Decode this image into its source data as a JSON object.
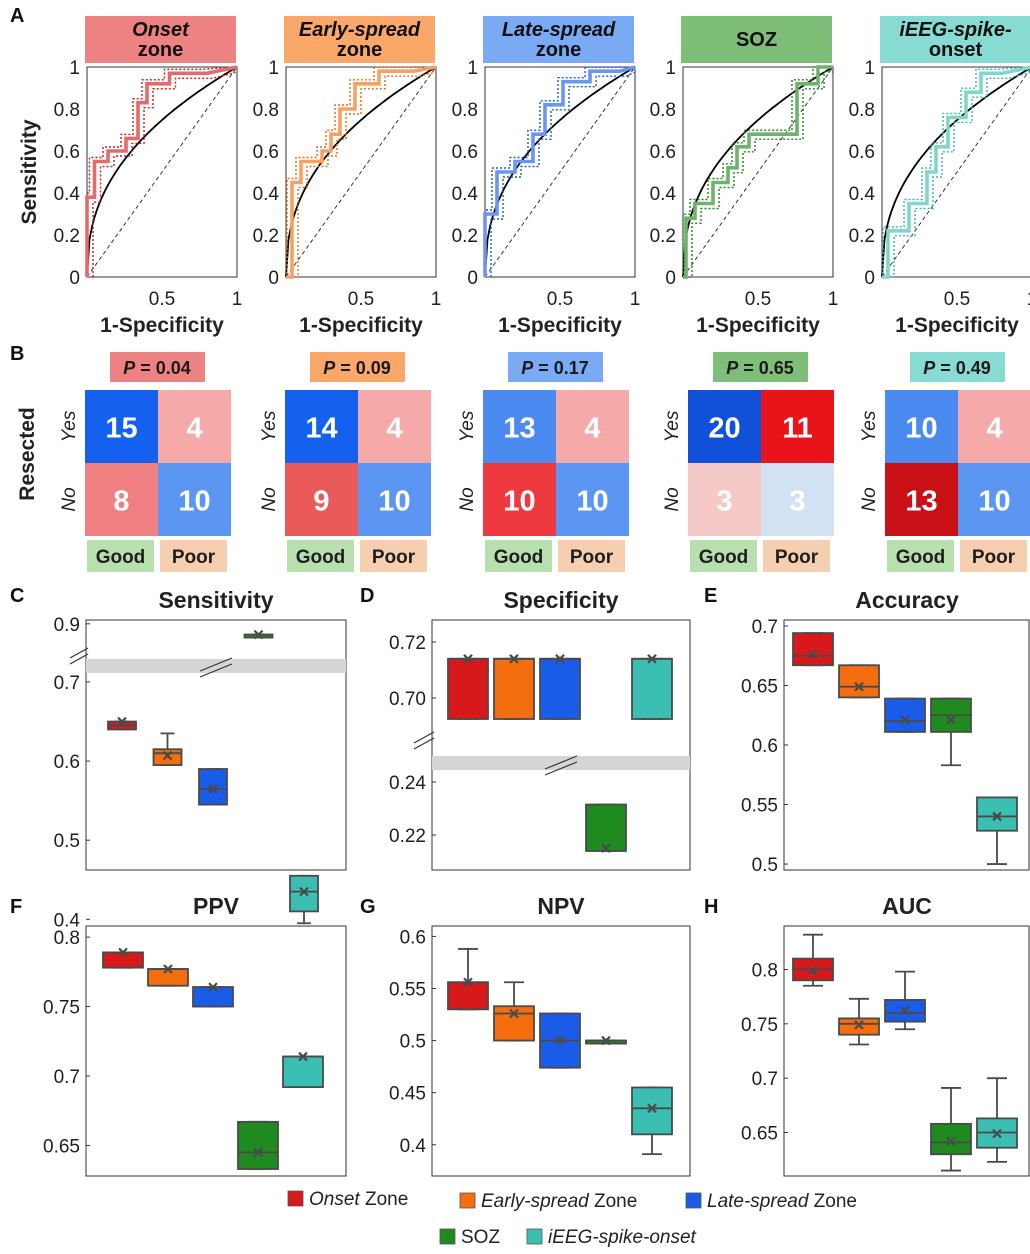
{
  "colors": {
    "onset": "#d7191c",
    "early": "#f46d0f",
    "late": "#1a5ce8",
    "soz": "#1f8a1f",
    "ieeg": "#3bbfb2",
    "onset_light": "#ec8282",
    "early_light": "#f9a86a",
    "late_light": "#79aaf3",
    "soz_light": "#7fbe78",
    "ieeg_light": "#87dbd2",
    "good_bg": "#b8dfae",
    "poor_bg": "#f6cfb0"
  },
  "panel_letters": [
    "A",
    "B",
    "C",
    "D",
    "E",
    "F",
    "G",
    "H"
  ],
  "panelA": {
    "ylabel": "Sensitivity",
    "xlabel": "1-Specificity",
    "yticks": [
      "0",
      "0.2",
      "0.4",
      "0.6",
      "0.8",
      "1"
    ],
    "xticks": [
      "0.5",
      "1"
    ],
    "headers": [
      {
        "key": "onset",
        "line1": "Onset",
        "line2": "zone",
        "italic1": true
      },
      {
        "key": "early",
        "line1": "Early-spread",
        "line2": "zone",
        "italic1": true
      },
      {
        "key": "late",
        "line1": "Late-spread",
        "line2": "zone",
        "italic1": true
      },
      {
        "key": "soz",
        "line1": "SOZ",
        "line2": "",
        "italic1": false
      },
      {
        "key": "ieeg",
        "line1": "iEEG-spike-",
        "line2": "onset",
        "italic1": true
      }
    ]
  },
  "panelB": {
    "ylabel": "Resected",
    "row_labels": [
      "Yes",
      "No"
    ],
    "col_labels": [
      "Good",
      "Poor"
    ],
    "matrices": [
      {
        "key": "onset",
        "p": "P = 0.04",
        "cells": [
          [
            15,
            4
          ],
          [
            8,
            10
          ]
        ]
      },
      {
        "key": "early",
        "p": "P = 0.09",
        "cells": [
          [
            14,
            4
          ],
          [
            9,
            10
          ]
        ]
      },
      {
        "key": "late",
        "p": "P = 0.17",
        "cells": [
          [
            13,
            4
          ],
          [
            10,
            10
          ]
        ]
      },
      {
        "key": "soz",
        "p": "P = 0.65",
        "cells": [
          [
            20,
            11
          ],
          [
            3,
            3
          ]
        ]
      },
      {
        "key": "ieeg",
        "p": "P = 0.49",
        "cells": [
          [
            10,
            4
          ],
          [
            13,
            10
          ]
        ]
      }
    ]
  },
  "chart_data": [
    {
      "panel": "C",
      "type": "box",
      "title": "Sensitivity",
      "axis_break": true,
      "yticks": [
        "0.4",
        "0.5",
        "0.6",
        "0.7",
        "0.9"
      ],
      "series": [
        {
          "name": "Onset Zone",
          "key": "onset",
          "q1": 0.64,
          "median": 0.645,
          "q3": 0.65,
          "whisker_low": 0.64,
          "whisker_high": 0.65,
          "mean": 0.65
        },
        {
          "name": "Early-spread Zone",
          "key": "early",
          "q1": 0.595,
          "median": 0.61,
          "q3": 0.615,
          "whisker_low": 0.595,
          "whisker_high": 0.635,
          "mean": 0.607
        },
        {
          "name": "Late-spread Zone",
          "key": "late",
          "q1": 0.545,
          "median": 0.565,
          "q3": 0.59,
          "whisker_low": 0.545,
          "whisker_high": 0.59,
          "mean": 0.565
        },
        {
          "name": "SOZ",
          "key": "soz",
          "q1": 0.87,
          "median": 0.87,
          "q3": 0.87,
          "whisker_low": 0.87,
          "whisker_high": 0.87,
          "mean": 0.87
        },
        {
          "name": "iEEG-spike-onset",
          "key": "ieeg",
          "q1": 0.41,
          "median": 0.435,
          "q3": 0.455,
          "whisker_low": 0.395,
          "whisker_high": 0.455,
          "mean": 0.435
        }
      ]
    },
    {
      "panel": "D",
      "type": "box",
      "title": "Specificity",
      "axis_break": true,
      "yticks": [
        "0.22",
        "0.24",
        "0.70",
        "0.72"
      ],
      "series": [
        {
          "name": "Onset Zone",
          "key": "onset",
          "q1": 0.6925,
          "median": 0.714,
          "q3": 0.714,
          "whisker_low": 0.6925,
          "whisker_high": 0.714,
          "mean": 0.714
        },
        {
          "name": "Early-spread Zone",
          "key": "early",
          "q1": 0.6925,
          "median": 0.714,
          "q3": 0.714,
          "whisker_low": 0.6925,
          "whisker_high": 0.714,
          "mean": 0.714
        },
        {
          "name": "Late-spread Zone",
          "key": "late",
          "q1": 0.6925,
          "median": 0.714,
          "q3": 0.714,
          "whisker_low": 0.6925,
          "whisker_high": 0.714,
          "mean": 0.714
        },
        {
          "name": "SOZ",
          "key": "soz",
          "q1": 0.214,
          "median": 0.214,
          "q3": 0.2315,
          "whisker_low": 0.214,
          "whisker_high": 0.2315,
          "mean": 0.215
        },
        {
          "name": "iEEG-spike-onset",
          "key": "ieeg",
          "q1": 0.6925,
          "median": 0.714,
          "q3": 0.714,
          "whisker_low": 0.6925,
          "whisker_high": 0.714,
          "mean": 0.714
        }
      ]
    },
    {
      "panel": "E",
      "type": "box",
      "title": "Accuracy",
      "axis_break": false,
      "yticks": [
        "0.5",
        "0.55",
        "0.6",
        "0.65",
        "0.7"
      ],
      "ylim": [
        0.495,
        0.705
      ],
      "series": [
        {
          "name": "Onset Zone",
          "key": "onset",
          "q1": 0.667,
          "median": 0.675,
          "q3": 0.694,
          "whisker_low": 0.667,
          "whisker_high": 0.694,
          "mean": 0.676
        },
        {
          "name": "Early-spread Zone",
          "key": "early",
          "q1": 0.64,
          "median": 0.649,
          "q3": 0.667,
          "whisker_low": 0.64,
          "whisker_high": 0.667,
          "mean": 0.649
        },
        {
          "name": "Late-spread Zone",
          "key": "late",
          "q1": 0.611,
          "median": 0.62,
          "q3": 0.639,
          "whisker_low": 0.611,
          "whisker_high": 0.639,
          "mean": 0.621
        },
        {
          "name": "SOZ",
          "key": "soz",
          "q1": 0.611,
          "median": 0.625,
          "q3": 0.639,
          "whisker_low": 0.583,
          "whisker_high": 0.639,
          "mean": 0.621
        },
        {
          "name": "iEEG-spike-onset",
          "key": "ieeg",
          "q1": 0.528,
          "median": 0.54,
          "q3": 0.556,
          "whisker_low": 0.5,
          "whisker_high": 0.556,
          "mean": 0.54
        }
      ]
    },
    {
      "panel": "F",
      "type": "box",
      "title": "PPV",
      "axis_break": false,
      "yticks": [
        "0.65",
        "0.7",
        "0.75",
        "0.8"
      ],
      "ylim": [
        0.628,
        0.808
      ],
      "series": [
        {
          "name": "Onset Zone",
          "key": "onset",
          "q1": 0.778,
          "median": 0.789,
          "q3": 0.789,
          "whisker_low": 0.778,
          "whisker_high": 0.789,
          "mean": 0.789
        },
        {
          "name": "Early-spread Zone",
          "key": "early",
          "q1": 0.765,
          "median": 0.777,
          "q3": 0.777,
          "whisker_low": 0.765,
          "whisker_high": 0.777,
          "mean": 0.777
        },
        {
          "name": "Late-spread Zone",
          "key": "late",
          "q1": 0.75,
          "median": 0.764,
          "q3": 0.764,
          "whisker_low": 0.75,
          "whisker_high": 0.764,
          "mean": 0.764
        },
        {
          "name": "SOZ",
          "key": "soz",
          "q1": 0.633,
          "median": 0.645,
          "q3": 0.667,
          "whisker_low": 0.633,
          "whisker_high": 0.667,
          "mean": 0.645
        },
        {
          "name": "iEEG-spike-onset",
          "key": "ieeg",
          "q1": 0.692,
          "median": 0.714,
          "q3": 0.714,
          "whisker_low": 0.692,
          "whisker_high": 0.714,
          "mean": 0.714
        }
      ]
    },
    {
      "panel": "G",
      "type": "box",
      "title": "NPV",
      "axis_break": false,
      "yticks": [
        "0.4",
        "0.45",
        "0.5",
        "0.55",
        "0.6"
      ],
      "ylim": [
        0.37,
        0.61
      ],
      "series": [
        {
          "name": "Onset Zone",
          "key": "onset",
          "q1": 0.53,
          "median": 0.556,
          "q3": 0.556,
          "whisker_low": 0.53,
          "whisker_high": 0.588,
          "mean": 0.556
        },
        {
          "name": "Early-spread Zone",
          "key": "early",
          "q1": 0.5,
          "median": 0.526,
          "q3": 0.533,
          "whisker_low": 0.5,
          "whisker_high": 0.556,
          "mean": 0.526
        },
        {
          "name": "Late-spread Zone",
          "key": "late",
          "q1": 0.474,
          "median": 0.5,
          "q3": 0.526,
          "whisker_low": 0.474,
          "whisker_high": 0.526,
          "mean": 0.5
        },
        {
          "name": "SOZ",
          "key": "soz",
          "q1": 0.5,
          "median": 0.5,
          "q3": 0.5,
          "whisker_low": 0.5,
          "whisker_high": 0.5,
          "mean": 0.5
        },
        {
          "name": "iEEG-spike-onset",
          "key": "ieeg",
          "q1": 0.41,
          "median": 0.435,
          "q3": 0.455,
          "whisker_low": 0.391,
          "whisker_high": 0.455,
          "mean": 0.435
        }
      ]
    },
    {
      "panel": "H",
      "type": "box",
      "title": "AUC",
      "axis_break": false,
      "yticks": [
        "0.65",
        "0.7",
        "0.75",
        "0.8"
      ],
      "ylim": [
        0.61,
        0.84
      ],
      "series": [
        {
          "name": "Onset Zone",
          "key": "onset",
          "q1": 0.79,
          "median": 0.8,
          "q3": 0.81,
          "whisker_low": 0.785,
          "whisker_high": 0.832,
          "mean": 0.799
        },
        {
          "name": "Early-spread Zone",
          "key": "early",
          "q1": 0.74,
          "median": 0.75,
          "q3": 0.755,
          "whisker_low": 0.731,
          "whisker_high": 0.773,
          "mean": 0.749
        },
        {
          "name": "Late-spread Zone",
          "key": "late",
          "q1": 0.752,
          "median": 0.76,
          "q3": 0.772,
          "whisker_low": 0.745,
          "whisker_high": 0.798,
          "mean": 0.762
        },
        {
          "name": "SOZ",
          "key": "soz",
          "q1": 0.63,
          "median": 0.641,
          "q3": 0.658,
          "whisker_low": 0.615,
          "whisker_high": 0.691,
          "mean": 0.642
        },
        {
          "name": "iEEG-spike-onset",
          "key": "ieeg",
          "q1": 0.636,
          "median": 0.65,
          "q3": 0.663,
          "whisker_low": 0.623,
          "whisker_high": 0.7,
          "mean": 0.649
        }
      ]
    }
  ],
  "roc_curves": [
    {
      "key": "onset",
      "points": [
        [
          0,
          0
        ],
        [
          0,
          0.38
        ],
        [
          0.05,
          0.38
        ],
        [
          0.05,
          0.55
        ],
        [
          0.14,
          0.55
        ],
        [
          0.14,
          0.6
        ],
        [
          0.26,
          0.6
        ],
        [
          0.26,
          0.66
        ],
        [
          0.34,
          0.66
        ],
        [
          0.34,
          0.83
        ],
        [
          0.4,
          0.83
        ],
        [
          0.4,
          0.92
        ],
        [
          0.55,
          0.92
        ],
        [
          0.55,
          0.97
        ],
        [
          0.8,
          0.97
        ],
        [
          1,
          1
        ]
      ]
    },
    {
      "key": "early",
      "points": [
        [
          0,
          0
        ],
        [
          0.04,
          0
        ],
        [
          0.04,
          0.45
        ],
        [
          0.1,
          0.45
        ],
        [
          0.1,
          0.55
        ],
        [
          0.24,
          0.55
        ],
        [
          0.24,
          0.6
        ],
        [
          0.3,
          0.6
        ],
        [
          0.3,
          0.68
        ],
        [
          0.36,
          0.68
        ],
        [
          0.36,
          0.8
        ],
        [
          0.46,
          0.8
        ],
        [
          0.46,
          0.92
        ],
        [
          0.62,
          0.92
        ],
        [
          0.62,
          0.98
        ],
        [
          0.85,
          0.98
        ],
        [
          1,
          1
        ]
      ]
    },
    {
      "key": "late",
      "points": [
        [
          0,
          0
        ],
        [
          0,
          0.3
        ],
        [
          0.08,
          0.3
        ],
        [
          0.08,
          0.5
        ],
        [
          0.2,
          0.5
        ],
        [
          0.2,
          0.55
        ],
        [
          0.32,
          0.55
        ],
        [
          0.32,
          0.68
        ],
        [
          0.4,
          0.68
        ],
        [
          0.4,
          0.82
        ],
        [
          0.52,
          0.82
        ],
        [
          0.52,
          0.93
        ],
        [
          0.7,
          0.93
        ],
        [
          0.7,
          0.98
        ],
        [
          0.9,
          0.98
        ],
        [
          1,
          1
        ]
      ]
    },
    {
      "key": "soz",
      "points": [
        [
          0,
          0
        ],
        [
          0.02,
          0
        ],
        [
          0.02,
          0.28
        ],
        [
          0.08,
          0.28
        ],
        [
          0.08,
          0.35
        ],
        [
          0.2,
          0.35
        ],
        [
          0.2,
          0.45
        ],
        [
          0.3,
          0.45
        ],
        [
          0.3,
          0.52
        ],
        [
          0.36,
          0.52
        ],
        [
          0.36,
          0.62
        ],
        [
          0.44,
          0.62
        ],
        [
          0.44,
          0.68
        ],
        [
          0.76,
          0.68
        ],
        [
          0.76,
          0.92
        ],
        [
          0.9,
          0.92
        ],
        [
          0.9,
          1
        ],
        [
          1,
          1
        ]
      ]
    },
    {
      "key": "ieeg",
      "points": [
        [
          0,
          0
        ],
        [
          0.04,
          0
        ],
        [
          0.04,
          0.22
        ],
        [
          0.18,
          0.22
        ],
        [
          0.18,
          0.35
        ],
        [
          0.3,
          0.35
        ],
        [
          0.3,
          0.5
        ],
        [
          0.36,
          0.5
        ],
        [
          0.36,
          0.62
        ],
        [
          0.44,
          0.62
        ],
        [
          0.44,
          0.76
        ],
        [
          0.56,
          0.76
        ],
        [
          0.56,
          0.88
        ],
        [
          0.66,
          0.88
        ],
        [
          0.66,
          0.97
        ],
        [
          0.8,
          0.97
        ],
        [
          1,
          1
        ]
      ]
    }
  ],
  "legend": [
    {
      "key": "onset",
      "italic": "Onset",
      "rest": " Zone"
    },
    {
      "key": "early",
      "italic": "Early-spread",
      "rest": " Zone"
    },
    {
      "key": "late",
      "italic": "Late-spread",
      "rest": " Zone"
    },
    {
      "key": "soz",
      "italic": "",
      "rest": "SOZ"
    },
    {
      "key": "ieeg",
      "italic": "iEEG-spike-onset",
      "rest": ""
    }
  ]
}
